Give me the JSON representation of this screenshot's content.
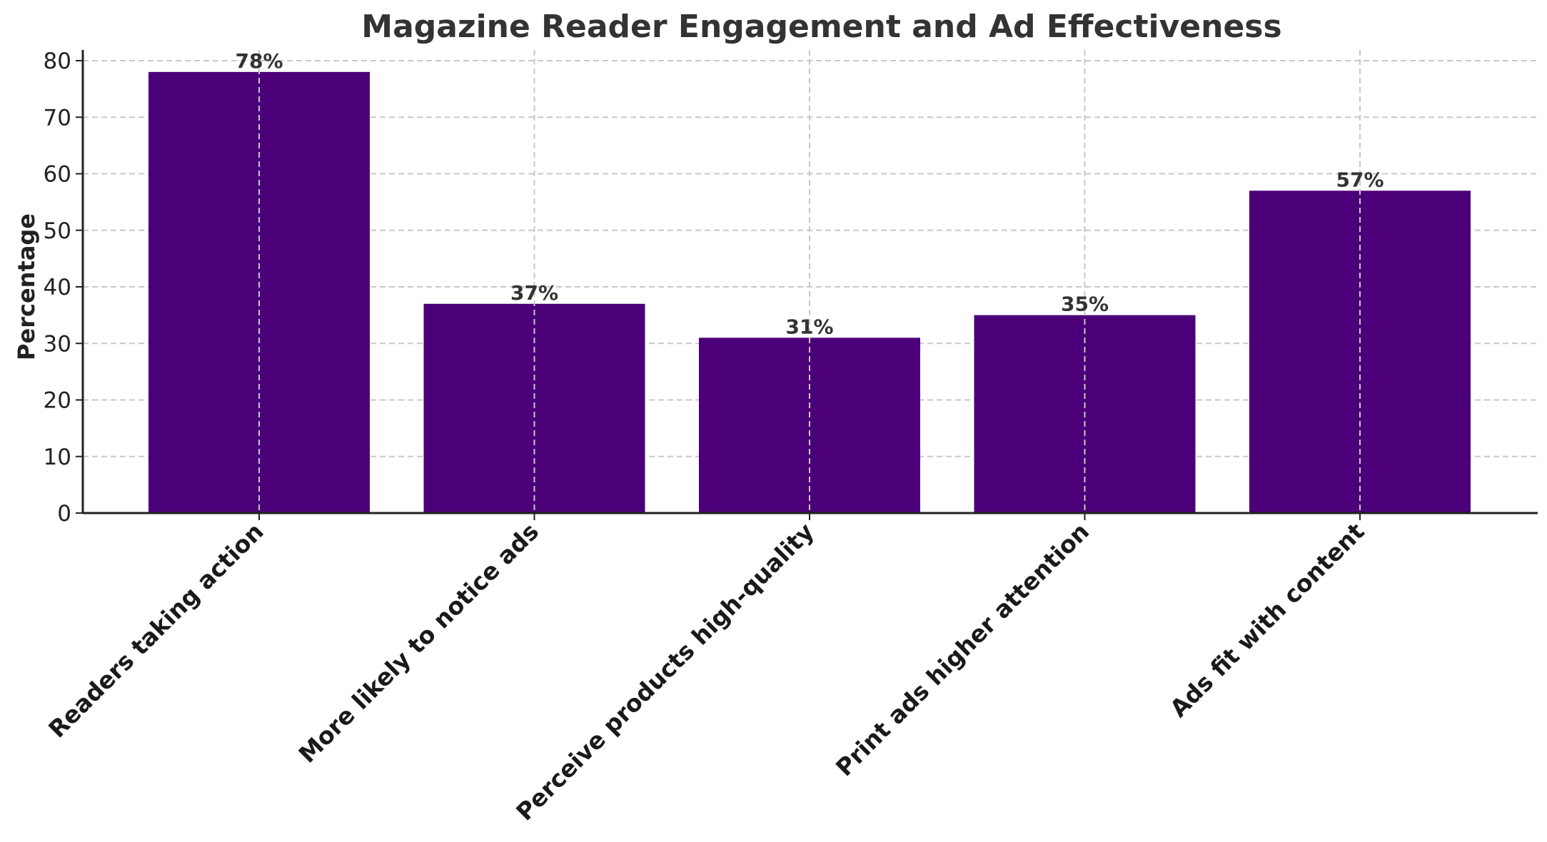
{
  "chart_data": {
    "type": "bar",
    "title": "Magazine Reader Engagement and Ad Effectiveness",
    "xlabel": "",
    "ylabel": "Percentage",
    "categories": [
      "Readers taking action",
      "More likely to notice ads",
      "Perceive products high-quality",
      "Print ads higher attention",
      "Ads fit with content"
    ],
    "values": [
      78,
      37,
      31,
      35,
      57
    ],
    "value_labels": [
      "78%",
      "37%",
      "31%",
      "35%",
      "57%"
    ],
    "ylim": [
      0,
      82
    ],
    "yticks": [
      0,
      10,
      20,
      30,
      40,
      50,
      60,
      70,
      80
    ],
    "grid": true,
    "grid_style": "dashed",
    "legend": null,
    "x_tick_rotation": 45,
    "bar_color": "#4b0079"
  },
  "colors": {
    "bar": "#4b0079",
    "title": "#333333",
    "grid": "#c8c8c8",
    "axis": "#222222"
  }
}
